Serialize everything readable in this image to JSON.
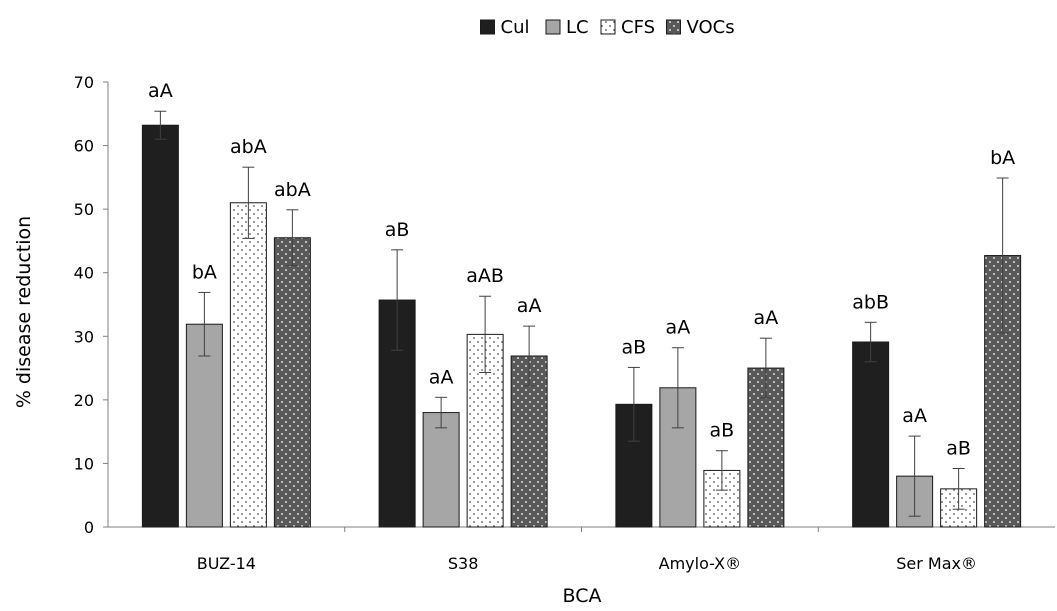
{
  "chart_data": {
    "type": "bar",
    "title": "",
    "xlabel": "BCA",
    "ylabel": "% disease reduction",
    "ylim": [
      0,
      70
    ],
    "yticks": [
      0,
      10,
      20,
      30,
      40,
      50,
      60,
      70
    ],
    "grid": false,
    "legend": "top-center",
    "categories": [
      "BUZ-14",
      "S38",
      "Amylo-X®",
      "Ser Max®"
    ],
    "series": [
      {
        "name": "Cul",
        "color": "#1f1f1f",
        "pattern": "solid",
        "values": [
          63.2,
          35.7,
          19.3,
          29.1
        ],
        "errors": [
          2.2,
          7.9,
          5.8,
          3.1
        ],
        "labels": [
          "aA",
          "aB",
          "aB",
          "abB"
        ]
      },
      {
        "name": "LC",
        "color": "#a6a6a6",
        "pattern": "solid",
        "values": [
          31.9,
          18.0,
          21.9,
          8.0
        ],
        "errors": [
          5.0,
          2.4,
          6.3,
          6.3
        ],
        "labels": [
          "bA",
          "aA",
          "aA",
          "aA"
        ]
      },
      {
        "name": "CFS",
        "color": "#ffffff",
        "pattern": "dots-light",
        "values": [
          51.0,
          30.3,
          8.9,
          6.0
        ],
        "errors": [
          5.6,
          6.0,
          3.1,
          3.2
        ],
        "labels": [
          "abA",
          "aAB",
          "aB",
          "aB"
        ]
      },
      {
        "name": "VOCs",
        "color": "#595959",
        "pattern": "dots-dark",
        "values": [
          45.5,
          26.9,
          25.0,
          42.7
        ],
        "errors": [
          4.4,
          4.7,
          4.7,
          12.2
        ],
        "labels": [
          "abA",
          "aA",
          "aA",
          "bA"
        ]
      }
    ]
  }
}
